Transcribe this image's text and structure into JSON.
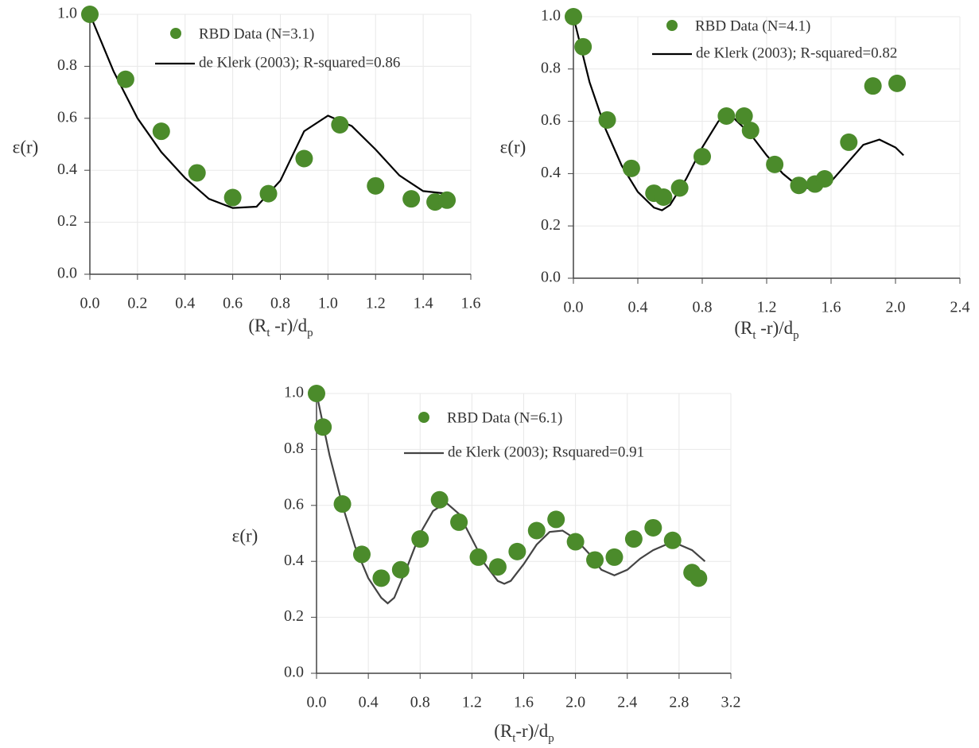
{
  "chart_data": [
    {
      "type": "scatter",
      "ylabel": "ε(r)",
      "xlabel": [
        "(R",
        "t",
        " -r)/d",
        "p"
      ],
      "xlim": [
        0,
        1.6
      ],
      "ylim": [
        0,
        1
      ],
      "xticks": [
        {
          "value": 0,
          "label": "0.0"
        },
        0.2,
        0.4,
        0.6,
        0.8,
        {
          "value": 1,
          "label": "1.0"
        },
        1.2,
        1.4,
        1.6
      ],
      "yticks": [
        {
          "value": 0,
          "label": "0.0"
        },
        0.2,
        0.4,
        0.6,
        0.8,
        {
          "value": 1,
          "label": "1.0"
        }
      ],
      "grid": true,
      "series": [
        {
          "name": "RBD Data (N=3.1)",
          "type": "scatter",
          "color": "#4b8b2b",
          "x": [
            0,
            0.15,
            0.3,
            0.45,
            0.6,
            0.75,
            0.9,
            1.05,
            1.2,
            1.35,
            1.45,
            1.5
          ],
          "values": [
            1.0,
            0.75,
            0.55,
            0.39,
            0.295,
            0.31,
            0.445,
            0.575,
            0.34,
            0.29,
            0.278,
            0.285
          ]
        },
        {
          "name": "de Klerk (2003); R-squared=0.86",
          "type": "line",
          "color": "#000000",
          "x": [
            0,
            0.1,
            0.2,
            0.3,
            0.4,
            0.5,
            0.6,
            0.7,
            0.8,
            0.9,
            1.0,
            1.1,
            1.2,
            1.3,
            1.4,
            1.5
          ],
          "values": [
            1.0,
            0.78,
            0.6,
            0.47,
            0.37,
            0.29,
            0.255,
            0.26,
            0.36,
            0.55,
            0.61,
            0.57,
            0.48,
            0.38,
            0.32,
            0.31
          ]
        }
      ]
    },
    {
      "type": "scatter",
      "ylabel": "ε(r)",
      "xlabel": [
        "(R",
        "t",
        " -r)/d",
        "p"
      ],
      "xlim": [
        0,
        2.4
      ],
      "ylim": [
        0,
        1
      ],
      "xticks": [
        {
          "value": 0,
          "label": "0.0"
        },
        0.4,
        0.8,
        1.2,
        1.6,
        {
          "value": 2,
          "label": "2.0"
        },
        2.4
      ],
      "yticks": [
        {
          "value": 0,
          "label": "0.0"
        },
        0.2,
        0.4,
        0.6,
        0.8,
        {
          "value": 1,
          "label": "1.0"
        }
      ],
      "grid": true,
      "series": [
        {
          "name": "RBD Data (N=4.1)",
          "type": "scatter",
          "color": "#4b8b2b",
          "x": [
            0,
            0.06,
            0.21,
            0.36,
            0.5,
            0.56,
            0.66,
            0.8,
            0.95,
            1.06,
            1.1,
            1.25,
            1.4,
            1.5,
            1.56,
            1.71,
            1.86,
            2.01
          ],
          "values": [
            1.0,
            0.885,
            0.605,
            0.42,
            0.325,
            0.31,
            0.345,
            0.465,
            0.62,
            0.62,
            0.565,
            0.435,
            0.355,
            0.36,
            0.38,
            0.52,
            0.735,
            0.745
          ]
        },
        {
          "name": "de Klerk (2003); R-squared=0.82",
          "type": "line",
          "color": "#000000",
          "x": [
            0,
            0.1,
            0.2,
            0.3,
            0.4,
            0.5,
            0.55,
            0.6,
            0.7,
            0.8,
            0.9,
            0.95,
            1.0,
            1.1,
            1.2,
            1.3,
            1.4,
            1.5,
            1.6,
            1.7,
            1.8,
            1.9,
            2.0,
            2.05
          ],
          "values": [
            1.0,
            0.75,
            0.57,
            0.43,
            0.33,
            0.27,
            0.26,
            0.28,
            0.38,
            0.5,
            0.6,
            0.62,
            0.61,
            0.55,
            0.47,
            0.4,
            0.35,
            0.34,
            0.37,
            0.44,
            0.51,
            0.53,
            0.5,
            0.47
          ]
        }
      ]
    },
    {
      "type": "scatter",
      "ylabel": "ε(r)",
      "xlabel": [
        "(R",
        "t",
        "-r)/d",
        "p"
      ],
      "xlim": [
        0,
        3.2
      ],
      "ylim": [
        0,
        1
      ],
      "xticks": [
        {
          "value": 0,
          "label": "0.0"
        },
        0.4,
        0.8,
        1.2,
        1.6,
        {
          "value": 2,
          "label": "2.0"
        },
        2.4,
        2.8,
        3.2
      ],
      "yticks": [
        {
          "value": 0,
          "label": "0.0"
        },
        0.2,
        0.4,
        0.6,
        0.8,
        {
          "value": 1,
          "label": "1.0"
        }
      ],
      "grid": true,
      "series": [
        {
          "name": "RBD Data (N=6.1)",
          "type": "scatter",
          "color": "#4b8b2b",
          "x": [
            0,
            0.05,
            0.2,
            0.35,
            0.5,
            0.65,
            0.8,
            0.95,
            1.1,
            1.25,
            1.4,
            1.55,
            1.7,
            1.85,
            2.0,
            2.15,
            2.3,
            2.45,
            2.6,
            2.75,
            2.9,
            2.95
          ],
          "values": [
            1.0,
            0.88,
            0.605,
            0.425,
            0.34,
            0.37,
            0.48,
            0.62,
            0.54,
            0.415,
            0.38,
            0.435,
            0.51,
            0.55,
            0.47,
            0.405,
            0.415,
            0.48,
            0.52,
            0.475,
            0.36,
            0.34
          ]
        },
        {
          "name": "de Klerk (2003); Rsquared=0.91",
          "type": "line",
          "color": "#444444",
          "x": [
            0,
            0.1,
            0.2,
            0.3,
            0.4,
            0.5,
            0.55,
            0.6,
            0.7,
            0.8,
            0.9,
            1.0,
            1.1,
            1.2,
            1.3,
            1.4,
            1.45,
            1.5,
            1.6,
            1.7,
            1.8,
            1.9,
            2.0,
            2.1,
            2.2,
            2.3,
            2.4,
            2.5,
            2.6,
            2.7,
            2.8,
            2.9,
            3.0
          ],
          "values": [
            1.0,
            0.78,
            0.6,
            0.45,
            0.34,
            0.27,
            0.25,
            0.27,
            0.38,
            0.5,
            0.58,
            0.61,
            0.57,
            0.48,
            0.39,
            0.33,
            0.32,
            0.33,
            0.39,
            0.46,
            0.505,
            0.51,
            0.48,
            0.43,
            0.37,
            0.35,
            0.37,
            0.41,
            0.44,
            0.46,
            0.46,
            0.44,
            0.4
          ]
        }
      ]
    }
  ]
}
